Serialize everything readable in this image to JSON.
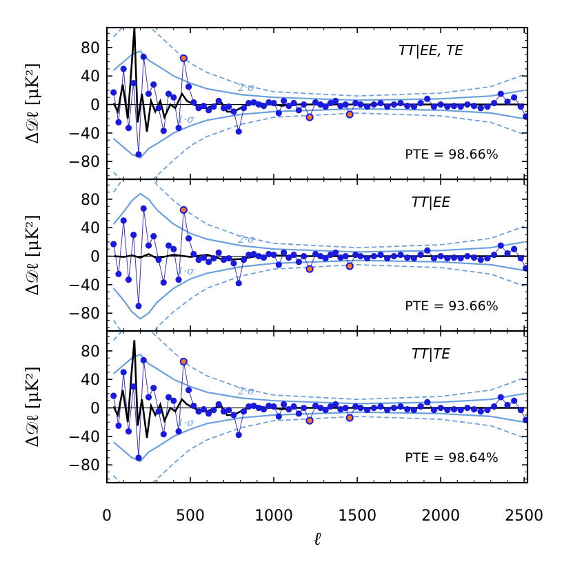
{
  "chart_data": {
    "type": "line",
    "xlabel": "ℓ",
    "xlim": [
      0,
      2520
    ],
    "x_ticks": [
      0,
      500,
      1000,
      1500,
      2000,
      2500
    ],
    "x_tick_labels": [
      "0",
      "500",
      "1000",
      "1500",
      "2000",
      "2500"
    ],
    "band_labels": {
      "one_sigma": "1·σ",
      "two_sigma": "2·σ"
    },
    "colors": {
      "data": "#1a1add",
      "data_line": "#3a2fc0",
      "outlier_fill": "#f07a2a",
      "model": "#000000",
      "band_solid": "#6aa0e0",
      "band_dashed": "#6aa0e0"
    },
    "panels": [
      {
        "title": "TT|EE, TE",
        "pte": "PTE = 98.66%",
        "ylabel": "Δ𝒟ℓ  [μK²]",
        "ylim": [
          -105,
          108
        ],
        "y_ticks": [
          80,
          40,
          0,
          -40,
          -80
        ],
        "y_tick_labels": [
          "80",
          "40",
          "0",
          "−40",
          "−80"
        ],
        "model": {
          "x": [
            40,
            65,
            95,
            125,
            150,
            165,
            185,
            210,
            240,
            265,
            290,
            320,
            345,
            380,
            410,
            450,
            480,
            520,
            560,
            600,
            650,
            680,
            720,
            760,
            800,
            850,
            900,
            950,
            1000,
            1050,
            1100,
            1200,
            1300,
            1500,
            2000,
            2500
          ],
          "y": [
            2,
            -10,
            28,
            -20,
            60,
            108,
            -25,
            15,
            -38,
            5,
            -10,
            5,
            -18,
            0,
            -5,
            15,
            5,
            0,
            -5,
            -5,
            0,
            5,
            -10,
            -10,
            -5,
            0,
            3,
            0,
            0,
            -2,
            0,
            0,
            0,
            0,
            0,
            0
          ]
        },
        "one_sigma": {
          "x": [
            40,
            100,
            150,
            200,
            250,
            300,
            400,
            500,
            600,
            800,
            1000,
            1500,
            2000,
            2300,
            2500
          ],
          "y": [
            48,
            60,
            70,
            75,
            62,
            55,
            40,
            30,
            22,
            14,
            10,
            6,
            8,
            12,
            20
          ]
        },
        "two_sigma": {
          "x": [
            40,
            100,
            150,
            200,
            250,
            300,
            400,
            500,
            600,
            800,
            1000,
            1500,
            2000,
            2300,
            2500
          ],
          "y": [
            95,
            110,
            120,
            125,
            110,
            100,
            78,
            58,
            45,
            28,
            18,
            12,
            16,
            25,
            42
          ]
        },
        "data": {
          "x": [
            40,
            70,
            100,
            130,
            160,
            190,
            220,
            250,
            280,
            310,
            340,
            370,
            400,
            430,
            460,
            490,
            520,
            550,
            580,
            610,
            640,
            670,
            700,
            730,
            760,
            790,
            820,
            850,
            880,
            910,
            940,
            970,
            1000,
            1030,
            1060,
            1090,
            1120,
            1150,
            1180,
            1215,
            1250,
            1280,
            1310,
            1340,
            1370,
            1400,
            1430,
            1455,
            1490,
            1520,
            1560,
            1600,
            1640,
            1680,
            1720,
            1760,
            1800,
            1840,
            1880,
            1920,
            1960,
            2000,
            2040,
            2080,
            2120,
            2160,
            2200,
            2240,
            2280,
            2320,
            2360,
            2400,
            2440,
            2480,
            2510
          ],
          "y": [
            17,
            -25,
            50,
            -33,
            30,
            -70,
            67,
            15,
            28,
            -5,
            -37,
            15,
            10,
            -33,
            65,
            25,
            3,
            -5,
            -2,
            -8,
            -3,
            5,
            -5,
            -3,
            -10,
            -38,
            -5,
            2,
            3,
            0,
            -2,
            3,
            2,
            -12,
            5,
            -2,
            2,
            -8,
            0,
            -18,
            3,
            0,
            -3,
            2,
            5,
            -2,
            0,
            -14,
            2,
            0,
            -3,
            0,
            2,
            -3,
            0,
            2,
            -2,
            -3,
            2,
            8,
            -3,
            0,
            -3,
            -2,
            -3,
            0,
            -2,
            -5,
            -3,
            2,
            15,
            4,
            10,
            -3,
            -17
          ]
        },
        "outliers": {
          "x": [
            460,
            1215,
            1455
          ],
          "y": [
            65,
            -18,
            -14
          ]
        }
      },
      {
        "title": "TT|EE",
        "pte": "PTE = 93.66%",
        "ylabel": "Δ𝒟ℓ  [μK²]",
        "ylim": [
          -105,
          108
        ],
        "y_ticks": [
          80,
          40,
          0,
          -40,
          -80
        ],
        "y_tick_labels": [
          "80",
          "40",
          "0",
          "−40",
          "−80"
        ],
        "model": {
          "x": [
            40,
            100,
            150,
            200,
            250,
            300,
            400,
            500,
            600,
            700,
            800,
            900,
            1000,
            1200,
            1500,
            2000,
            2500
          ],
          "y": [
            0,
            -1,
            1,
            -2,
            3,
            -3,
            2,
            -1,
            2,
            -5,
            -4,
            0,
            1,
            0,
            0,
            0,
            0
          ]
        },
        "one_sigma": {
          "x": [
            40,
            100,
            150,
            200,
            250,
            300,
            400,
            500,
            600,
            800,
            1000,
            1500,
            2000,
            2300,
            2500
          ],
          "y": [
            45,
            62,
            78,
            88,
            80,
            65,
            45,
            32,
            24,
            15,
            10,
            6,
            8,
            12,
            20
          ]
        },
        "two_sigma": {
          "x": [
            40,
            100,
            150,
            200,
            250,
            300,
            400,
            500,
            600,
            800,
            1000,
            1500,
            2000,
            2300,
            2500
          ],
          "y": [
            90,
            110,
            125,
            135,
            120,
            100,
            78,
            60,
            45,
            28,
            18,
            12,
            16,
            25,
            42
          ]
        },
        "data": {
          "x": [
            40,
            70,
            100,
            130,
            160,
            190,
            220,
            250,
            280,
            310,
            340,
            370,
            400,
            430,
            460,
            490,
            520,
            550,
            580,
            610,
            640,
            670,
            700,
            730,
            760,
            790,
            820,
            850,
            880,
            910,
            940,
            970,
            1000,
            1030,
            1060,
            1090,
            1120,
            1150,
            1180,
            1215,
            1250,
            1280,
            1310,
            1340,
            1370,
            1400,
            1430,
            1455,
            1490,
            1520,
            1560,
            1600,
            1640,
            1680,
            1720,
            1760,
            1800,
            1840,
            1880,
            1920,
            1960,
            2000,
            2040,
            2080,
            2120,
            2160,
            2200,
            2240,
            2280,
            2320,
            2360,
            2400,
            2440,
            2480,
            2510
          ],
          "y": [
            17,
            -25,
            50,
            -33,
            30,
            -70,
            67,
            15,
            28,
            -5,
            -37,
            15,
            10,
            -33,
            65,
            25,
            3,
            -5,
            -2,
            -8,
            -3,
            5,
            -5,
            -3,
            -10,
            -38,
            -5,
            2,
            3,
            0,
            -2,
            3,
            2,
            -12,
            5,
            -2,
            2,
            -8,
            0,
            -18,
            3,
            0,
            -3,
            2,
            5,
            -2,
            0,
            -14,
            2,
            0,
            -3,
            0,
            2,
            -3,
            0,
            2,
            -2,
            -3,
            2,
            8,
            -3,
            0,
            -3,
            -2,
            -3,
            0,
            -2,
            -5,
            -3,
            2,
            15,
            4,
            10,
            -3,
            -17
          ]
        },
        "outliers": {
          "x": [
            460,
            1215,
            1455
          ],
          "y": [
            65,
            -18,
            -14
          ]
        }
      },
      {
        "title": "TT|TE",
        "pte": "PTE = 98.64%",
        "ylabel": "Δ𝒟ℓ  [μK²]",
        "ylim": [
          -105,
          108
        ],
        "y_ticks": [
          80,
          40,
          0,
          -40,
          -80
        ],
        "y_tick_labels": [
          "80",
          "40",
          "0",
          "−40",
          "−80"
        ],
        "model": {
          "x": [
            40,
            65,
            95,
            125,
            150,
            165,
            185,
            210,
            240,
            265,
            290,
            320,
            345,
            380,
            410,
            450,
            480,
            520,
            560,
            600,
            650,
            680,
            720,
            760,
            800,
            850,
            900,
            950,
            1000,
            1050,
            1100,
            1200,
            1300,
            1500,
            2000,
            2500
          ],
          "y": [
            2,
            -10,
            25,
            -20,
            55,
            95,
            -25,
            12,
            -42,
            3,
            -10,
            5,
            -18,
            0,
            -5,
            12,
            5,
            0,
            -5,
            -5,
            0,
            5,
            -10,
            -10,
            -5,
            0,
            3,
            0,
            0,
            -2,
            0,
            0,
            0,
            0,
            0,
            0
          ]
        },
        "one_sigma": {
          "x": [
            40,
            100,
            150,
            200,
            250,
            300,
            400,
            500,
            600,
            800,
            1000,
            1500,
            2000,
            2300,
            2500
          ],
          "y": [
            48,
            60,
            70,
            75,
            62,
            55,
            40,
            30,
            22,
            14,
            10,
            6,
            8,
            12,
            20
          ]
        },
        "two_sigma": {
          "x": [
            40,
            100,
            150,
            200,
            250,
            300,
            400,
            500,
            600,
            800,
            1000,
            1500,
            2000,
            2300,
            2500
          ],
          "y": [
            95,
            110,
            120,
            125,
            110,
            100,
            78,
            58,
            45,
            28,
            18,
            12,
            16,
            25,
            42
          ]
        },
        "data": {
          "x": [
            40,
            70,
            100,
            130,
            160,
            190,
            220,
            250,
            280,
            310,
            340,
            370,
            400,
            430,
            460,
            490,
            520,
            550,
            580,
            610,
            640,
            670,
            700,
            730,
            760,
            790,
            820,
            850,
            880,
            910,
            940,
            970,
            1000,
            1030,
            1060,
            1090,
            1120,
            1150,
            1180,
            1215,
            1250,
            1280,
            1310,
            1340,
            1370,
            1400,
            1430,
            1455,
            1490,
            1520,
            1560,
            1600,
            1640,
            1680,
            1720,
            1760,
            1800,
            1840,
            1880,
            1920,
            1960,
            2000,
            2040,
            2080,
            2120,
            2160,
            2200,
            2240,
            2280,
            2320,
            2360,
            2400,
            2440,
            2480,
            2510
          ],
          "y": [
            17,
            -25,
            50,
            -33,
            30,
            -70,
            67,
            15,
            28,
            -5,
            -37,
            15,
            10,
            -33,
            65,
            25,
            3,
            -5,
            -2,
            -8,
            -3,
            5,
            -5,
            -3,
            -10,
            -38,
            -5,
            2,
            3,
            0,
            -2,
            3,
            2,
            -12,
            5,
            -2,
            2,
            -8,
            0,
            -18,
            3,
            0,
            -3,
            2,
            5,
            -2,
            0,
            -14,
            2,
            0,
            -3,
            0,
            2,
            -3,
            0,
            2,
            -2,
            -3,
            2,
            8,
            -3,
            0,
            -3,
            -2,
            -3,
            0,
            -2,
            -5,
            -3,
            2,
            15,
            4,
            10,
            -3,
            -17
          ]
        },
        "outliers": {
          "x": [
            460,
            1215,
            1455
          ],
          "y": [
            65,
            -18,
            -14
          ]
        }
      }
    ]
  }
}
